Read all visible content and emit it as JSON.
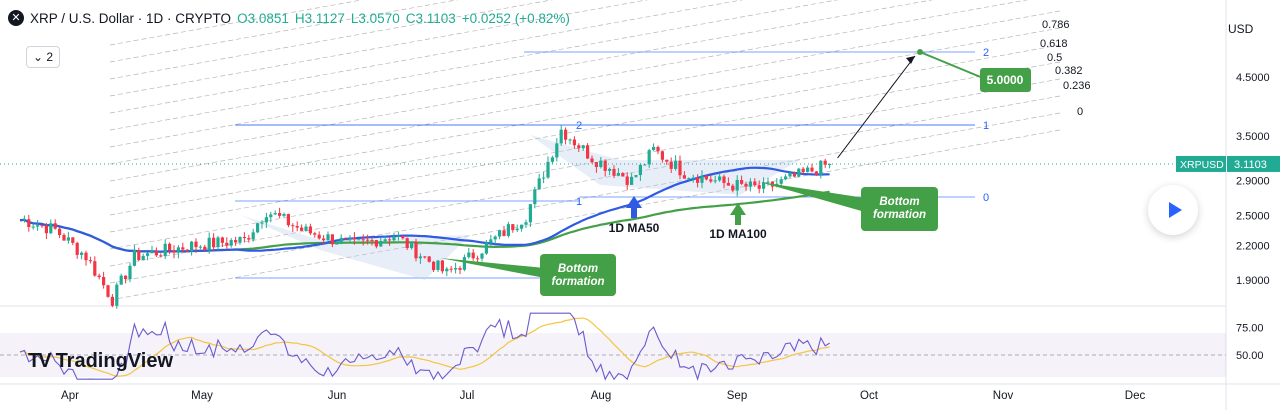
{
  "header": {
    "title": "XRP / U.S. Dollar · 1D · CRYPTO",
    "open": "O3.0851",
    "high": "H3.1127",
    "low": "L3.0570",
    "close": "C3.1103",
    "change": "+0.0252 (+0.82%)",
    "collapse_label": "2"
  },
  "currency": "USD",
  "logo_text": "TradingView",
  "colors": {
    "up": "#22ab94",
    "down": "#f23645",
    "ma50": "#2f5be3",
    "ma100": "#43a047",
    "fib": "#2962ff",
    "channel": "#9e9e9e",
    "callout": "#43a047",
    "rsi": "#6a5acd",
    "rsi_ma": "#f4c542"
  },
  "chart_data": {
    "type": "candlestick",
    "symbol": "XRPUSD",
    "last_price": "3.1103",
    "x_labels": [
      "Apr",
      "May",
      "Jun",
      "Jul",
      "Aug",
      "Sep",
      "Oct",
      "Nov",
      "Dec"
    ],
    "y_ticks": [
      "4.5000",
      "3.5000",
      "2.9000",
      "2.5000",
      "2.2000",
      "1.9000"
    ],
    "price_anchors": [
      {
        "date": "Mar 18",
        "close": 2.45
      },
      {
        "date": "Mar 25",
        "close": 2.35
      },
      {
        "date": "Apr 1",
        "close": 2.1
      },
      {
        "date": "Apr 7",
        "close": 1.75
      },
      {
        "date": "Apr 12",
        "close": 2.1
      },
      {
        "date": "Apr 25",
        "close": 2.2
      },
      {
        "date": "May 7",
        "close": 2.25
      },
      {
        "date": "May 12",
        "close": 2.55
      },
      {
        "date": "May 20",
        "close": 2.35
      },
      {
        "date": "Jun 1",
        "close": 2.2
      },
      {
        "date": "Jun 10",
        "close": 2.3
      },
      {
        "date": "Jun 22",
        "close": 1.95
      },
      {
        "date": "Jul 1",
        "close": 2.2
      },
      {
        "date": "Jul 10",
        "close": 2.5
      },
      {
        "date": "Jul 18",
        "close": 3.6
      },
      {
        "date": "Jul 25",
        "close": 3.2
      },
      {
        "date": "Aug 3",
        "close": 2.9
      },
      {
        "date": "Aug 8",
        "close": 3.3
      },
      {
        "date": "Aug 15",
        "close": 3.0
      },
      {
        "date": "Aug 25",
        "close": 2.85
      },
      {
        "date": "Sep 2",
        "close": 2.8
      },
      {
        "date": "Sep 17",
        "close": 3.11
      }
    ],
    "ma50_label": "1D MA50",
    "ma100_label": "1D MA100",
    "projection_target": "5.0000",
    "fib_extension_labels": [
      "2",
      "1",
      "0"
    ],
    "fib_channel_labels": [
      "0.786",
      "0.618",
      "0.5",
      "0.382",
      "0.236",
      "0"
    ],
    "annotations": [
      "Bottom formation",
      "Bottom formation"
    ],
    "rsi_ticks": [
      "75.00",
      "50.00"
    ]
  }
}
